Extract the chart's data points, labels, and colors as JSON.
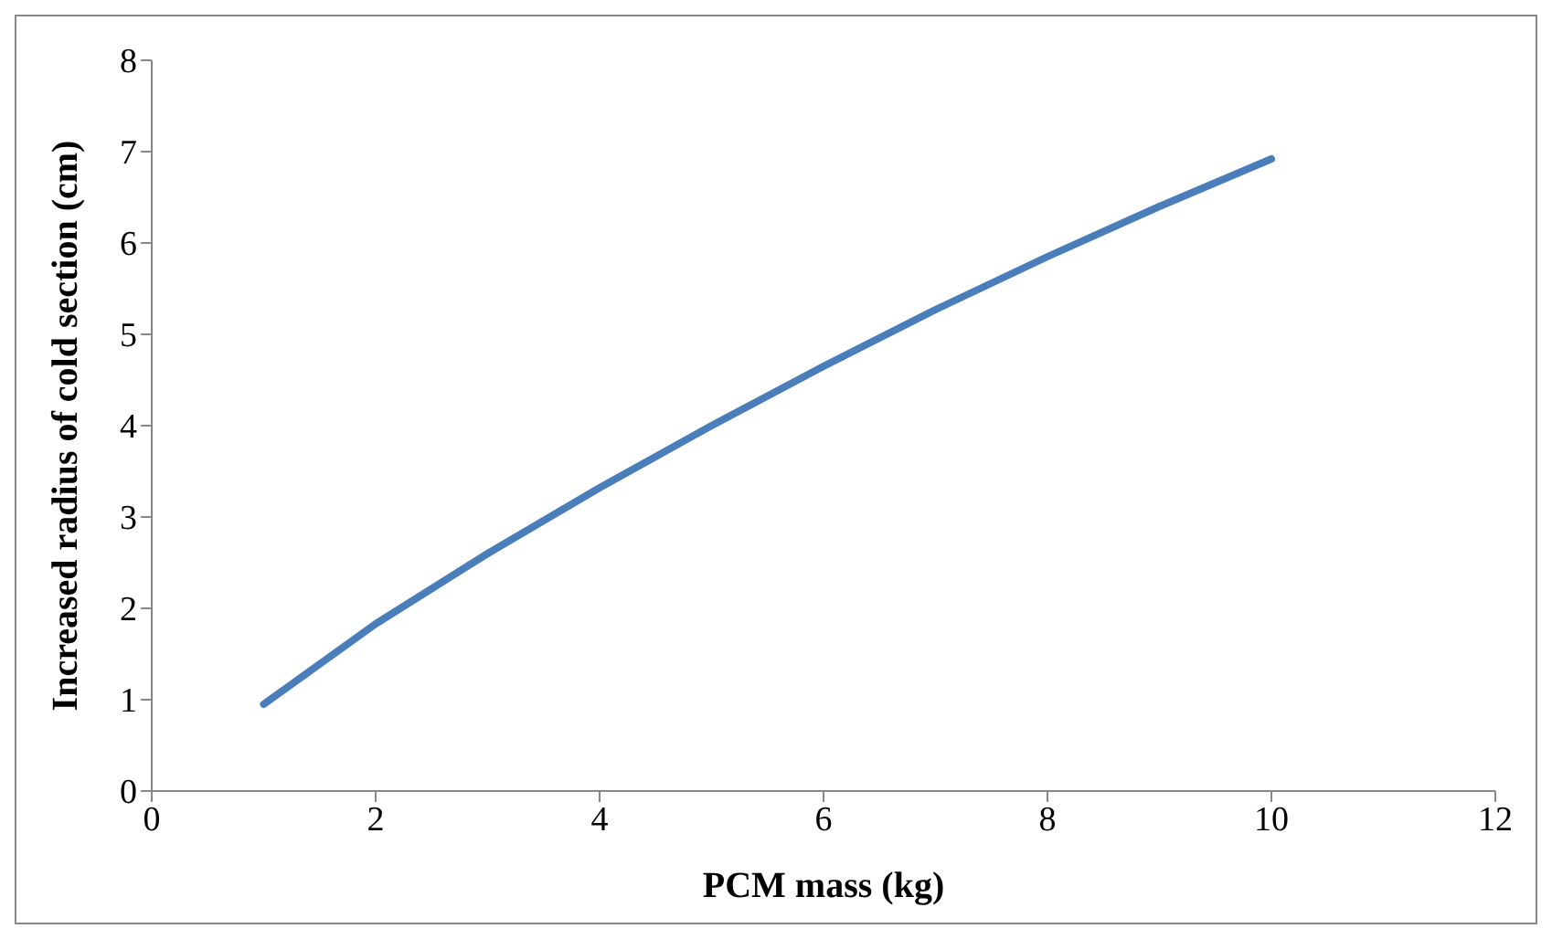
{
  "chart_data": {
    "type": "line",
    "xlabel": "PCM mass (kg)",
    "ylabel": "Increased radius of cold section (cm)",
    "x": [
      1,
      2,
      3,
      4,
      5,
      6,
      7,
      8,
      9,
      10
    ],
    "series": [
      {
        "color": "#4a7ebb",
        "values": [
          0.95,
          1.83,
          2.6,
          3.32,
          4.0,
          4.65,
          5.27,
          5.85,
          6.4,
          6.92
        ]
      }
    ],
    "xlim": [
      0,
      12
    ],
    "xticks": [
      0,
      2,
      4,
      6,
      8,
      10,
      12
    ],
    "ylim": [
      0,
      8
    ],
    "yticks": [
      0,
      1,
      2,
      3,
      4,
      5,
      6,
      7,
      8
    ],
    "grid": false,
    "legend": false,
    "marker": "none",
    "line_style": "solid"
  }
}
